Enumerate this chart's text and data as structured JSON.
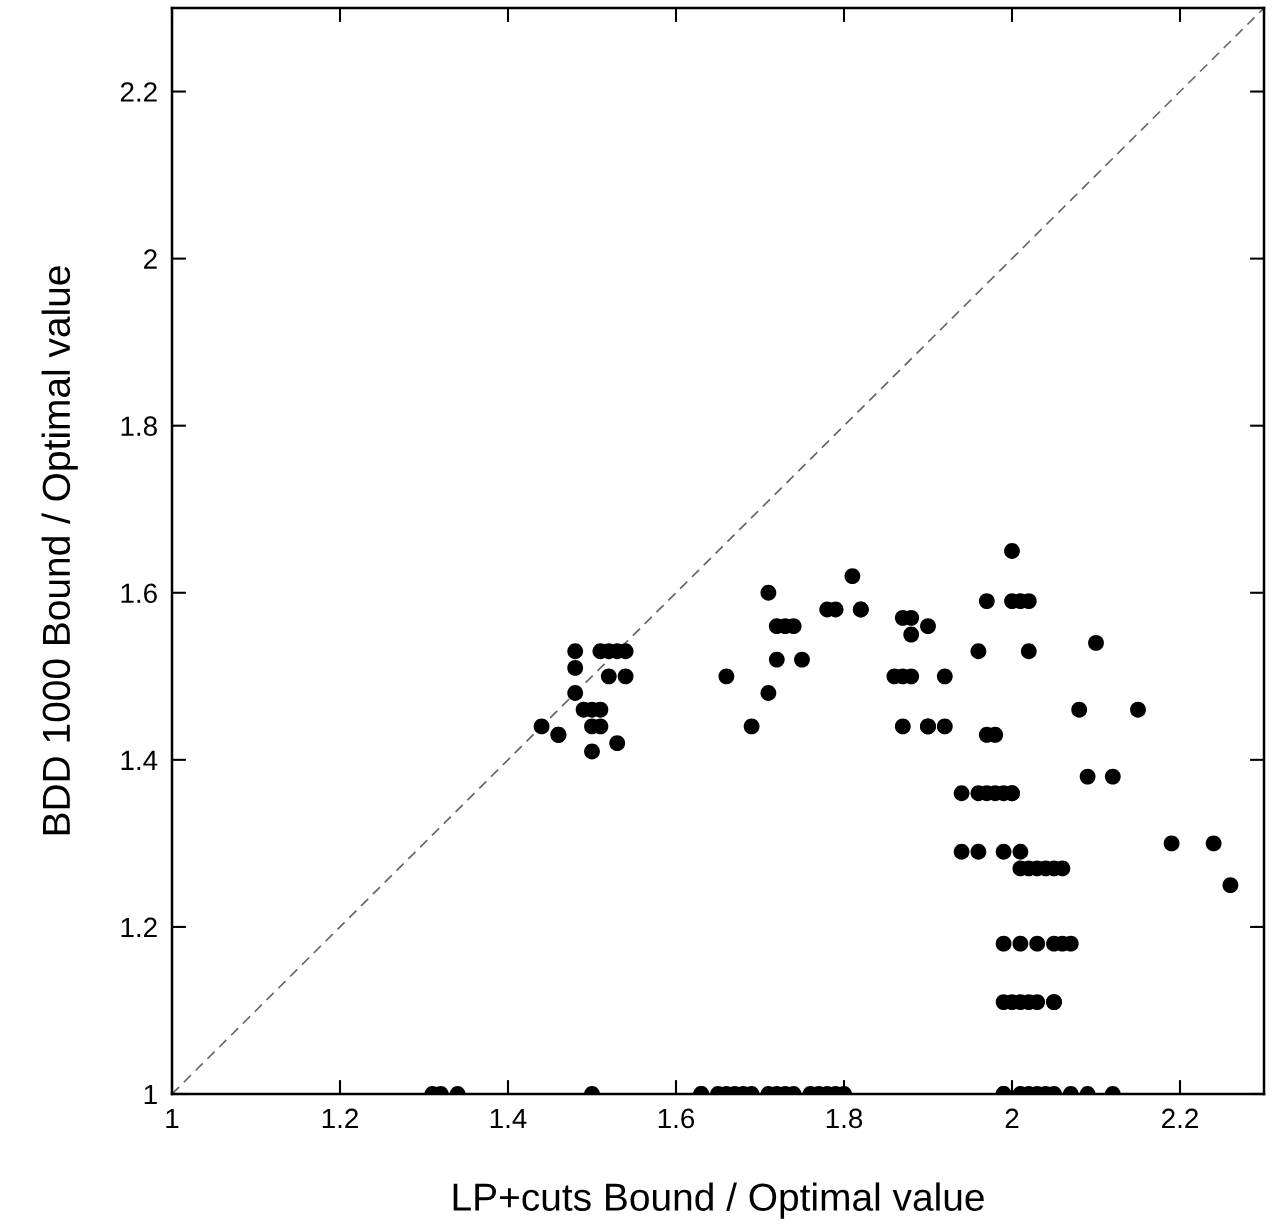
{
  "chart_data": {
    "type": "scatter",
    "xlabel": "LP+cuts Bound / Optimal value",
    "ylabel": "BDD 1000 Bound / Optimal value",
    "xlim": [
      1,
      2.3
    ],
    "ylim": [
      1,
      2.3
    ],
    "xticks": [
      1,
      1.2,
      1.4,
      1.6,
      1.8,
      2,
      2.2
    ],
    "yticks": [
      1,
      1.2,
      1.4,
      1.6,
      1.8,
      2,
      2.2
    ],
    "grid": false,
    "legend": false,
    "marker": "circle",
    "series": [
      {
        "type": "line",
        "color": "#666666",
        "line_style": "dashed",
        "marker": "none",
        "x": [
          1,
          2.3
        ],
        "values": [
          1,
          2.3
        ]
      },
      {
        "color": "#000000",
        "x": [
          1.44,
          1.46,
          1.46,
          1.48,
          1.48,
          1.48,
          1.49,
          1.5,
          1.51,
          1.5,
          1.51,
          1.5,
          1.53,
          1.51,
          1.52,
          1.53,
          1.54,
          1.52,
          1.54,
          1.66,
          1.69,
          1.71,
          1.71,
          1.72,
          1.75,
          1.72,
          1.73,
          1.74,
          1.78,
          1.79,
          1.81,
          1.82,
          1.82,
          1.86,
          1.88,
          1.9,
          1.92,
          1.87,
          1.88,
          1.87,
          1.9,
          1.9,
          1.92,
          1.87,
          1.88,
          2.0,
          1.97,
          2.0,
          2.01,
          2.02,
          1.96,
          2.02,
          2.1,
          1.97,
          1.98,
          2.08,
          2.15,
          1.94,
          1.96,
          1.97,
          1.98,
          1.99,
          2.0,
          2.0,
          2.09,
          2.12,
          1.94,
          1.96,
          1.99,
          2.01,
          2.01,
          2.02,
          2.03,
          2.04,
          2.05,
          2.06,
          2.19,
          2.24,
          2.26,
          1.99,
          2.01,
          2.03,
          2.05,
          2.06,
          2.07,
          1.99,
          2.0,
          2.01,
          2.02,
          2.03,
          2.05,
          2.05,
          1.31,
          1.32,
          1.34,
          1.5,
          1.63,
          1.63,
          1.65,
          1.66,
          1.67,
          1.68,
          1.69,
          1.71,
          1.72,
          1.73,
          1.74,
          1.76,
          1.77,
          1.78,
          1.79,
          1.8,
          1.99,
          1.99,
          2.01,
          2.02,
          2.03,
          2.04,
          2.05,
          2.07,
          2.09,
          2.12
        ],
        "values": [
          1.44,
          1.43,
          1.43,
          1.53,
          1.51,
          1.48,
          1.46,
          1.46,
          1.46,
          1.44,
          1.44,
          1.41,
          1.42,
          1.53,
          1.53,
          1.53,
          1.53,
          1.5,
          1.5,
          1.5,
          1.44,
          1.48,
          1.6,
          1.52,
          1.52,
          1.56,
          1.56,
          1.56,
          1.58,
          1.58,
          1.62,
          1.58,
          1.58,
          1.5,
          1.57,
          1.56,
          1.5,
          1.5,
          1.5,
          1.44,
          1.44,
          1.44,
          1.44,
          1.57,
          1.55,
          1.65,
          1.59,
          1.59,
          1.59,
          1.59,
          1.53,
          1.53,
          1.54,
          1.43,
          1.43,
          1.46,
          1.46,
          1.36,
          1.36,
          1.36,
          1.36,
          1.36,
          1.36,
          1.36,
          1.38,
          1.38,
          1.29,
          1.29,
          1.29,
          1.29,
          1.27,
          1.27,
          1.27,
          1.27,
          1.27,
          1.27,
          1.3,
          1.3,
          1.25,
          1.18,
          1.18,
          1.18,
          1.18,
          1.18,
          1.18,
          1.11,
          1.11,
          1.11,
          1.11,
          1.11,
          1.11,
          1.11,
          1,
          1,
          1,
          1,
          1,
          1,
          1,
          1,
          1,
          1,
          1,
          1,
          1,
          1,
          1,
          1,
          1,
          1,
          1,
          1,
          1,
          1,
          1,
          1,
          1,
          1,
          1,
          1,
          1,
          1
        ]
      }
    ]
  }
}
